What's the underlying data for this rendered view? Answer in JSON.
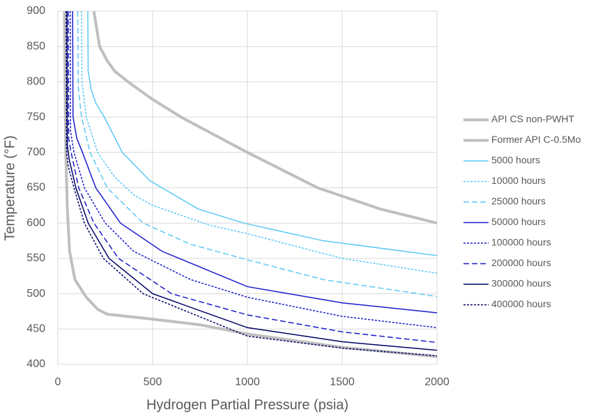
{
  "chart_data": {
    "type": "line",
    "x_label": "Hydrogen Partial Pressure (psia)",
    "y_label": "Temperature (°F)",
    "xlim": [
      0,
      2000
    ],
    "ylim": [
      400,
      900
    ],
    "xticks": [
      0,
      500,
      1000,
      1500,
      2000
    ],
    "yticks": [
      400,
      450,
      500,
      550,
      600,
      650,
      700,
      750,
      800,
      850,
      900
    ],
    "grid": true,
    "legend": "right",
    "series": [
      {
        "name": "API CS non-PWHT",
        "color": "#bfbfbf",
        "dash": "solid",
        "width": 4,
        "x": [
          190,
          220,
          260,
          300,
          380,
          500,
          650,
          1000,
          1370,
          1700,
          2000
        ],
        "values": [
          900,
          850,
          830,
          815,
          798,
          775,
          750,
          700,
          650,
          620,
          600
        ]
      },
      {
        "name": "Former API C-0.5Mo",
        "color": "#bfbfbf",
        "dash": "solid",
        "width": 4,
        "x": [
          35,
          38,
          42,
          50,
          62,
          90,
          150,
          210,
          260,
          500,
          750,
          1000,
          1500,
          2000
        ],
        "values": [
          900,
          800,
          700,
          620,
          560,
          520,
          495,
          478,
          471,
          464,
          456,
          443,
          424,
          411
        ]
      },
      {
        "name": "5000 hours",
        "color": "#5bc8f5",
        "dash": "solid",
        "width": 1.5,
        "x": [
          158,
          160,
          175,
          200,
          245,
          340,
          485,
          740,
          980,
          1400,
          2000
        ],
        "values": [
          900,
          815,
          790,
          770,
          750,
          700,
          660,
          620,
          600,
          575,
          554
        ]
      },
      {
        "name": "10000 hours",
        "color": "#5bc8f5",
        "dash": "short",
        "width": 1.5,
        "x": [
          125,
          127,
          150,
          210,
          300,
          400,
          500,
          800,
          1000,
          1500,
          2000
        ],
        "values": [
          900,
          800,
          750,
          700,
          665,
          640,
          625,
          597,
          585,
          550,
          529
        ]
      },
      {
        "name": "25000 hours",
        "color": "#5bc8f5",
        "dash": "long",
        "width": 1.5,
        "x": [
          105,
          108,
          125,
          170,
          260,
          450,
          700,
          1000,
          1400,
          2000
        ],
        "values": [
          900,
          790,
          750,
          700,
          650,
          600,
          570,
          548,
          520,
          496
        ]
      },
      {
        "name": "50000 hours",
        "color": "#1a1acd",
        "dash": "solid",
        "width": 1.5,
        "x": [
          78,
          80,
          100,
          130,
          200,
          330,
          550,
          1000,
          1500,
          2000
        ],
        "values": [
          900,
          750,
          720,
          700,
          650,
          600,
          560,
          510,
          487,
          473
        ]
      },
      {
        "name": "100000 hours",
        "color": "#1a1acd",
        "dash": "short",
        "width": 1.5,
        "x": [
          65,
          67,
          85,
          140,
          250,
          400,
          700,
          1000,
          1500,
          2000
        ],
        "values": [
          900,
          730,
          700,
          650,
          600,
          560,
          520,
          495,
          468,
          452
        ]
      },
      {
        "name": "200000 hours",
        "color": "#1a1acd",
        "dash": "long",
        "width": 1.5,
        "x": [
          55,
          57,
          70,
          110,
          190,
          320,
          600,
          1000,
          1500,
          2000
        ],
        "values": [
          900,
          720,
          700,
          650,
          600,
          550,
          500,
          470,
          446,
          431
        ]
      },
      {
        "name": "300000 hours",
        "color": "#000066",
        "dash": "solid",
        "width": 1.5,
        "x": [
          48,
          50,
          60,
          95,
          160,
          270,
          500,
          1000,
          1500,
          2000
        ],
        "values": [
          900,
          710,
          690,
          650,
          600,
          550,
          500,
          452,
          432,
          420
        ]
      },
      {
        "name": "400000 hours",
        "color": "#000066",
        "dash": "short",
        "width": 1.5,
        "x": [
          44,
          46,
          55,
          85,
          140,
          240,
          450,
          1000,
          1500,
          2000
        ],
        "values": [
          900,
          700,
          680,
          650,
          600,
          550,
          500,
          440,
          423,
          412
        ]
      }
    ]
  }
}
